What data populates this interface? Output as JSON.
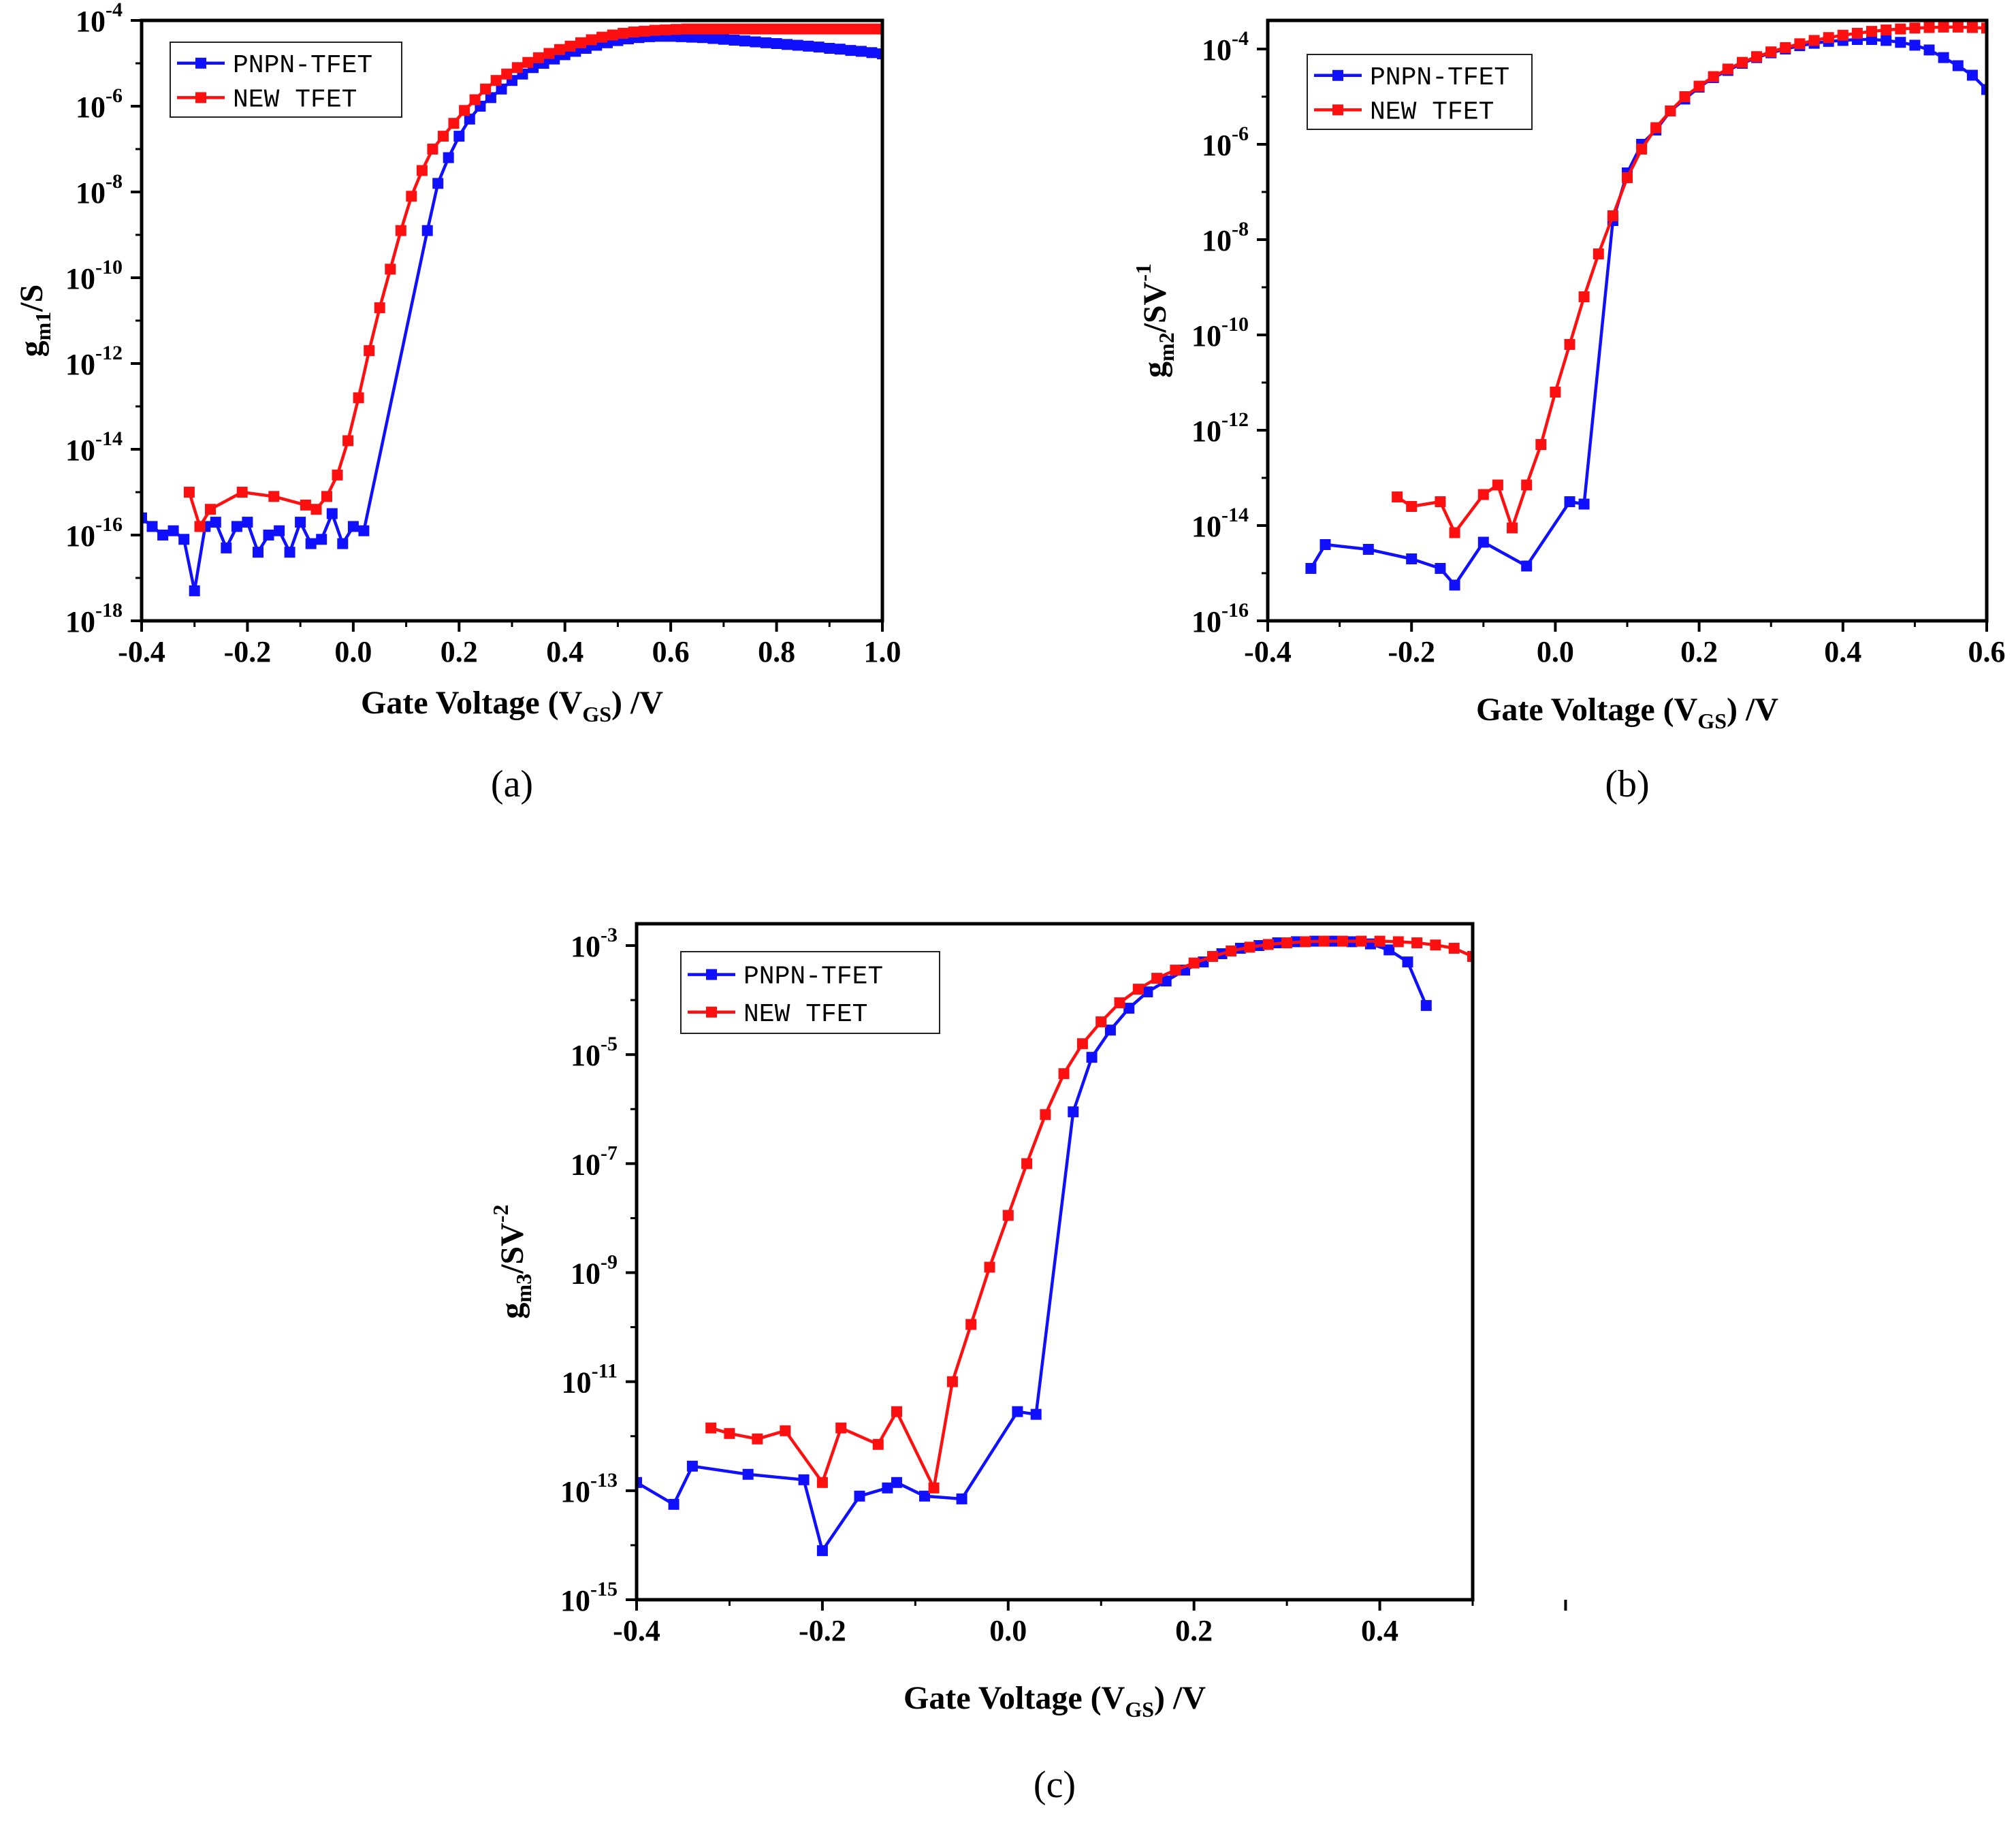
{
  "chart_data": [
    {
      "type": "line",
      "panel_label": "(a)",
      "xlabel": "Gate Voltage (V",
      "xlabel_sub": "GS",
      "xlabel_suffix": ") /V",
      "ylabel_base": "g",
      "ylabel_sub": "m1",
      "ylabel_rest": "/S",
      "ylabel_sup": "",
      "xlim": [
        -0.4,
        1.0
      ],
      "ylim_exp": [
        -18,
        -4
      ],
      "yscale": "log",
      "xticks": [
        "-0.4",
        "-0.2",
        "0.0",
        "0.2",
        "0.4",
        "0.6",
        "0.8",
        "1.0"
      ],
      "ytick_exponents": [
        "-18",
        "-16",
        "-14",
        "-12",
        "-10",
        "-8",
        "-6",
        "-4"
      ],
      "legend_position": "top-left",
      "series": [
        {
          "name": "PNPN-TFET",
          "color": "#1010ff",
          "x": [
            -0.4,
            -0.38,
            -0.36,
            -0.34,
            -0.32,
            -0.3,
            -0.28,
            -0.26,
            -0.24,
            -0.22,
            -0.2,
            -0.18,
            -0.16,
            -0.14,
            -0.12,
            -0.1,
            -0.08,
            -0.06,
            -0.04,
            -0.02,
            0.0,
            0.02,
            0.14,
            0.16,
            0.18,
            0.2,
            0.22,
            0.24,
            0.26,
            0.28,
            0.3,
            0.32,
            0.34,
            0.36,
            0.38,
            0.4,
            0.42,
            0.44,
            0.46,
            0.48,
            0.5,
            0.52,
            0.54,
            0.56,
            0.58,
            0.6,
            0.62,
            0.64,
            0.66,
            0.68,
            0.7,
            0.72,
            0.74,
            0.76,
            0.78,
            0.8,
            0.82,
            0.84,
            0.86,
            0.88,
            0.9,
            0.92,
            0.94,
            0.96,
            0.98,
            1.0
          ],
          "log10_y": [
            -15.6,
            -15.8,
            -16.0,
            -15.9,
            -16.1,
            -17.3,
            -15.8,
            -15.7,
            -16.3,
            -15.8,
            -15.7,
            -16.4,
            -16.0,
            -15.9,
            -16.4,
            -15.7,
            -16.2,
            -16.1,
            -15.5,
            -16.2,
            -15.8,
            -15.9,
            -8.9,
            -7.8,
            -7.2,
            -6.7,
            -6.3,
            -6.0,
            -5.8,
            -5.6,
            -5.4,
            -5.25,
            -5.1,
            -5.0,
            -4.9,
            -4.8,
            -4.72,
            -4.65,
            -4.58,
            -4.52,
            -4.47,
            -4.43,
            -4.4,
            -4.38,
            -4.37,
            -4.37,
            -4.38,
            -4.39,
            -4.4,
            -4.42,
            -4.44,
            -4.46,
            -4.48,
            -4.5,
            -4.52,
            -4.54,
            -4.56,
            -4.58,
            -4.6,
            -4.62,
            -4.65,
            -4.67,
            -4.7,
            -4.72,
            -4.75,
            -4.78
          ]
        },
        {
          "name": "NEW TFET",
          "color": "#ff1010",
          "x": [
            -0.31,
            -0.29,
            -0.27,
            -0.21,
            -0.15,
            -0.09,
            -0.07,
            -0.05,
            -0.03,
            -0.01,
            0.01,
            0.03,
            0.05,
            0.07,
            0.09,
            0.11,
            0.13,
            0.15,
            0.17,
            0.19,
            0.21,
            0.23,
            0.25,
            0.27,
            0.29,
            0.31,
            0.33,
            0.35,
            0.37,
            0.39,
            0.41,
            0.43,
            0.45,
            0.47,
            0.49,
            0.51,
            0.53,
            0.55,
            0.57,
            0.59,
            0.61,
            0.63,
            0.65,
            0.67,
            0.69,
            0.71,
            0.73,
            0.75,
            0.77,
            0.79,
            0.81,
            0.83,
            0.85,
            0.87,
            0.89,
            0.91,
            0.93,
            0.95,
            0.97,
            0.99
          ],
          "log10_y": [
            -15.0,
            -15.8,
            -15.4,
            -15.0,
            -15.1,
            -15.3,
            -15.4,
            -15.1,
            -14.6,
            -13.8,
            -12.8,
            -11.7,
            -10.7,
            -9.8,
            -8.9,
            -8.1,
            -7.5,
            -7.0,
            -6.7,
            -6.4,
            -6.1,
            -5.85,
            -5.6,
            -5.4,
            -5.25,
            -5.1,
            -4.98,
            -4.87,
            -4.77,
            -4.68,
            -4.6,
            -4.52,
            -4.45,
            -4.39,
            -4.34,
            -4.3,
            -4.27,
            -4.25,
            -4.23,
            -4.22,
            -4.21,
            -4.2,
            -4.2,
            -4.2,
            -4.2,
            -4.2,
            -4.2,
            -4.2,
            -4.2,
            -4.2,
            -4.2,
            -4.2,
            -4.2,
            -4.2,
            -4.2,
            -4.2,
            -4.2,
            -4.2,
            -4.2,
            -4.2
          ]
        }
      ]
    },
    {
      "type": "line",
      "panel_label": "(b)",
      "xlabel": "Gate Voltage (V",
      "xlabel_sub": "GS",
      "xlabel_suffix": ") /V",
      "ylabel_base": "g",
      "ylabel_sub": "m2",
      "ylabel_rest": "/SV",
      "ylabel_sup": "-1",
      "xlim": [
        -0.4,
        0.6
      ],
      "ylim_exp": [
        -16,
        -3.4
      ],
      "yscale": "log",
      "xticks": [
        "-0.4",
        "-0.2",
        "0.0",
        "0.2",
        "0.4",
        "0.6"
      ],
      "ytick_exponents": [
        "-16",
        "-14",
        "-12",
        "-10",
        "-8",
        "-6",
        "-4"
      ],
      "legend_position": "top-left",
      "series": [
        {
          "name": "PNPN-TFET",
          "color": "#1010ff",
          "x": [
            -0.34,
            -0.32,
            -0.26,
            -0.2,
            -0.16,
            -0.14,
            -0.1,
            -0.04,
            0.02,
            0.04,
            0.08,
            0.1,
            0.12,
            0.14,
            0.16,
            0.18,
            0.2,
            0.22,
            0.24,
            0.26,
            0.28,
            0.3,
            0.32,
            0.34,
            0.36,
            0.38,
            0.4,
            0.42,
            0.44,
            0.46,
            0.48,
            0.5,
            0.52,
            0.54,
            0.56,
            0.58,
            0.6
          ],
          "log10_y": [
            -14.9,
            -14.4,
            -14.5,
            -14.7,
            -14.9,
            -15.25,
            -14.35,
            -14.85,
            -13.5,
            -13.55,
            -7.6,
            -6.6,
            -6.0,
            -5.7,
            -5.3,
            -5.05,
            -4.8,
            -4.6,
            -4.45,
            -4.3,
            -4.18,
            -4.08,
            -4.0,
            -3.93,
            -3.88,
            -3.84,
            -3.82,
            -3.8,
            -3.8,
            -3.82,
            -3.86,
            -3.92,
            -4.02,
            -4.18,
            -4.35,
            -4.55,
            -4.85
          ]
        },
        {
          "name": "NEW TFET",
          "color": "#ff1010",
          "x": [
            -0.22,
            -0.2,
            -0.16,
            -0.14,
            -0.1,
            -0.08,
            -0.06,
            -0.04,
            -0.02,
            0.0,
            0.02,
            0.04,
            0.06,
            0.08,
            0.1,
            0.12,
            0.14,
            0.16,
            0.18,
            0.2,
            0.22,
            0.24,
            0.26,
            0.28,
            0.3,
            0.32,
            0.34,
            0.36,
            0.38,
            0.4,
            0.42,
            0.44,
            0.46,
            0.48,
            0.5,
            0.52,
            0.54,
            0.56,
            0.58,
            0.6
          ],
          "log10_y": [
            -13.4,
            -13.6,
            -13.5,
            -14.15,
            -13.35,
            -13.15,
            -14.05,
            -13.15,
            -12.3,
            -11.2,
            -10.2,
            -9.2,
            -8.3,
            -7.5,
            -6.7,
            -6.1,
            -5.65,
            -5.3,
            -5.0,
            -4.78,
            -4.58,
            -4.42,
            -4.28,
            -4.16,
            -4.06,
            -3.97,
            -3.89,
            -3.82,
            -3.76,
            -3.71,
            -3.67,
            -3.63,
            -3.6,
            -3.58,
            -3.56,
            -3.55,
            -3.54,
            -3.54,
            -3.55,
            -3.56
          ]
        }
      ]
    },
    {
      "type": "line",
      "panel_label": "(c)",
      "xlabel": "Gate Voltage (V",
      "xlabel_sub": "GS",
      "xlabel_suffix": ") /V",
      "ylabel_base": "g",
      "ylabel_sub": "m3",
      "ylabel_rest": "/SV",
      "ylabel_sup": "-2",
      "xlim": [
        -0.4,
        0.5
      ],
      "ylim_exp": [
        -15,
        -2.6
      ],
      "yscale": "log",
      "xticks": [
        "-0.4",
        "-0.2",
        "0.0",
        "0.2",
        "0.4"
      ],
      "ytick_exponents": [
        "-15",
        "-13",
        "-11",
        "-9",
        "-7",
        "-5",
        "-3"
      ],
      "legend_position": "top-left",
      "series": [
        {
          "name": "PNPN-TFET",
          "color": "#1010ff",
          "x": [
            -0.4,
            -0.36,
            -0.34,
            -0.28,
            -0.22,
            -0.2,
            -0.16,
            -0.13,
            -0.12,
            -0.09,
            -0.05,
            0.01,
            0.03,
            0.07,
            0.09,
            0.11,
            0.13,
            0.15,
            0.17,
            0.19,
            0.21,
            0.23,
            0.25,
            0.27,
            0.29,
            0.31,
            0.33,
            0.35,
            0.37,
            0.39,
            0.41,
            0.43,
            0.45
          ],
          "log10_y": [
            -12.85,
            -13.25,
            -12.55,
            -12.7,
            -12.8,
            -14.1,
            -13.1,
            -12.95,
            -12.85,
            -13.1,
            -13.15,
            -11.55,
            -11.6,
            -6.05,
            -5.05,
            -4.55,
            -4.15,
            -3.85,
            -3.65,
            -3.45,
            -3.3,
            -3.15,
            -3.05,
            -3.0,
            -2.95,
            -2.93,
            -2.92,
            -2.92,
            -2.93,
            -2.97,
            -3.08,
            -3.3,
            -4.1
          ]
        },
        {
          "name": "NEW TFET",
          "color": "#ff1010",
          "x": [
            -0.32,
            -0.3,
            -0.27,
            -0.24,
            -0.2,
            -0.18,
            -0.14,
            -0.12,
            -0.08,
            -0.06,
            -0.04,
            -0.02,
            0.0,
            0.02,
            0.04,
            0.06,
            0.08,
            0.1,
            0.12,
            0.14,
            0.16,
            0.18,
            0.2,
            0.22,
            0.24,
            0.26,
            0.28,
            0.3,
            0.32,
            0.34,
            0.36,
            0.38,
            0.4,
            0.42,
            0.44,
            0.46,
            0.48,
            0.5
          ],
          "log10_y": [
            -11.85,
            -11.95,
            -12.05,
            -11.9,
            -12.85,
            -11.85,
            -12.15,
            -11.55,
            -12.95,
            -11.0,
            -9.95,
            -8.9,
            -7.95,
            -7.0,
            -6.1,
            -5.35,
            -4.8,
            -4.4,
            -4.05,
            -3.8,
            -3.6,
            -3.45,
            -3.32,
            -3.2,
            -3.1,
            -3.03,
            -2.98,
            -2.95,
            -2.93,
            -2.92,
            -2.92,
            -2.92,
            -2.92,
            -2.93,
            -2.95,
            -2.99,
            -3.05,
            -3.2
          ]
        }
      ]
    }
  ]
}
